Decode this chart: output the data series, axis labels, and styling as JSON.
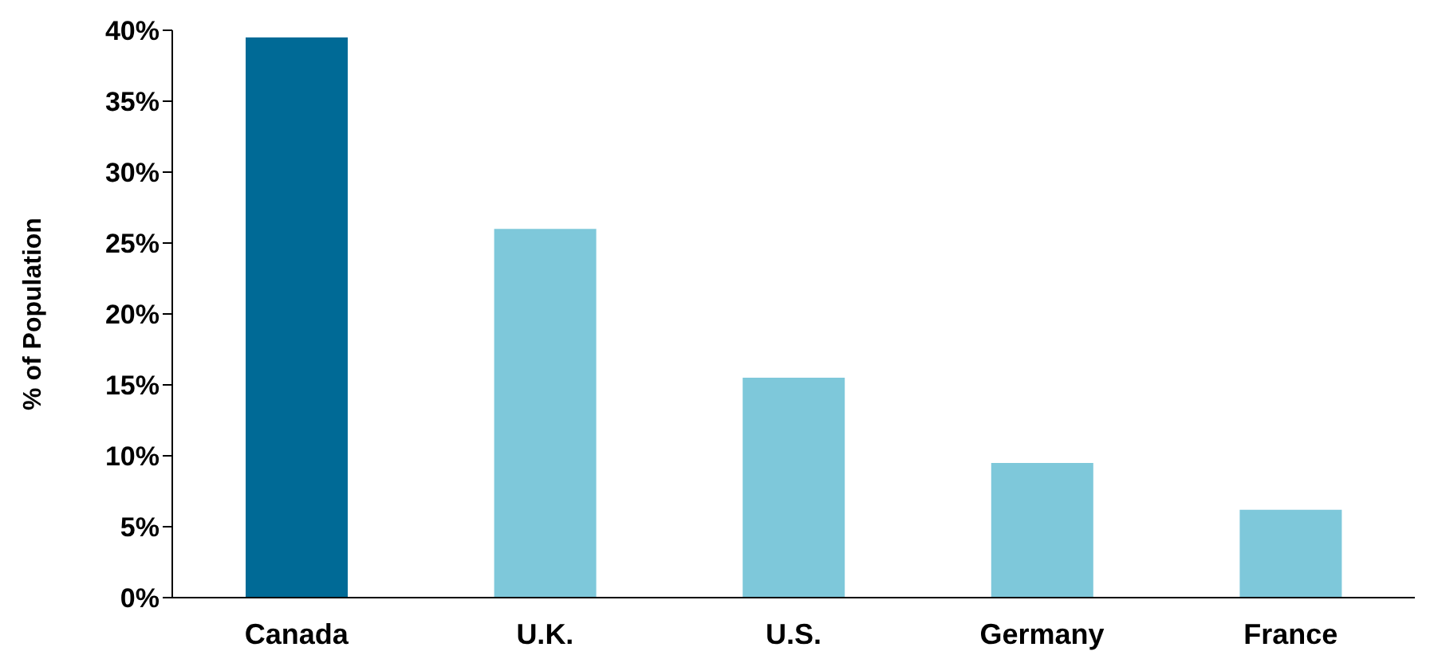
{
  "chart_data": {
    "type": "bar",
    "ylabel": "% of Population",
    "categories": [
      "Canada",
      "U.K.",
      "U.S.",
      "Germany",
      "France"
    ],
    "values": [
      39.5,
      26,
      15.5,
      9.5,
      6.2
    ],
    "colors": [
      "#006a96",
      "#7ec8da",
      "#7ec8da",
      "#7ec8da",
      "#7ec8da"
    ],
    "ylim": [
      0,
      40
    ],
    "yticks": [
      {
        "value": 0,
        "label": "0%"
      },
      {
        "value": 5,
        "label": "5%"
      },
      {
        "value": 10,
        "label": "10%"
      },
      {
        "value": 15,
        "label": "15%"
      },
      {
        "value": 20,
        "label": "20%"
      },
      {
        "value": 25,
        "label": "25%"
      },
      {
        "value": 30,
        "label": "30%"
      },
      {
        "value": 35,
        "label": "35%"
      },
      {
        "value": 40,
        "label": "40%"
      }
    ],
    "grid": false,
    "legend": false
  }
}
